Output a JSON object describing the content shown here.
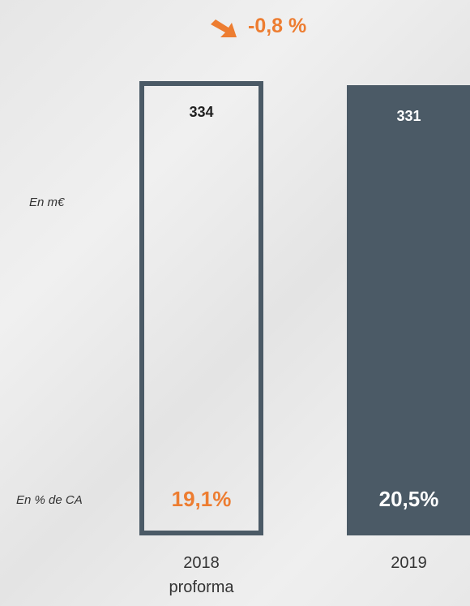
{
  "chart_data": {
    "type": "bar",
    "annotation": "-0,8 %",
    "value_axis_note": "En m€",
    "margin_axis_note": "En % de CA",
    "categories": [
      "2018 proforma",
      "2019"
    ],
    "values": [
      334,
      331
    ],
    "margin_labels": [
      "19,1%",
      "20,5%"
    ],
    "color": "#4b5a66",
    "outlined": [
      true,
      false
    ],
    "accent_color": "#ed7d31"
  }
}
